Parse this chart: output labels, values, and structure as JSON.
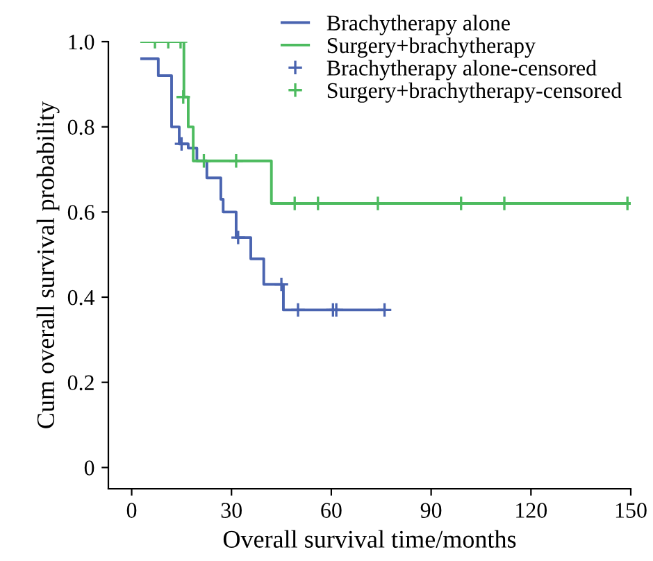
{
  "chart_data": {
    "type": "step",
    "xlabel": "Overall survival time/months",
    "ylabel": "Cum overall survival probability",
    "xlim": [
      -7,
      150
    ],
    "ylim": [
      -0.05,
      1.0
    ],
    "xticks": [
      0,
      30,
      60,
      90,
      120,
      150
    ],
    "yticks": [
      0,
      {
        "value": 0.2,
        "label": "0.2"
      },
      {
        "value": 0.4,
        "label": "0.4"
      },
      {
        "value": 0.6,
        "label": "0.6"
      },
      {
        "value": 0.8,
        "label": "0.8"
      },
      {
        "value": 1.0,
        "label": "1.0"
      }
    ],
    "legend": "top right",
    "grid": false,
    "series": [
      {
        "name": "Brachytherapy alone",
        "color": "#4a64b0",
        "x": [
          3,
          8,
          12,
          14.3,
          17,
          19.6,
          22.6,
          26.8,
          27.5,
          31.4,
          35.8,
          39.7,
          45.6,
          76
        ],
        "values": [
          0.96,
          0.92,
          0.8,
          0.76,
          0.75,
          0.72,
          0.68,
          0.63,
          0.6,
          0.54,
          0.49,
          0.43,
          0.37,
          0.37
        ]
      },
      {
        "name": "Surgery+brachytherapy",
        "color": "#4dbb5f",
        "x": [
          3,
          15.7,
          17,
          18.5,
          42,
          150
        ],
        "values": [
          1.0,
          0.87,
          0.8,
          0.72,
          0.62,
          0.62
        ]
      },
      {
        "name": "Brachytherapy alone-censored",
        "type": "scatter",
        "marker": "cross",
        "color": "#4a64b0",
        "x": [
          15,
          32,
          45,
          50,
          60.5,
          61.5,
          76
        ],
        "values": [
          0.76,
          0.54,
          0.43,
          0.37,
          0.37,
          0.37,
          0.37
        ]
      },
      {
        "name": "Surgery+brachytherapy-censored",
        "type": "scatter",
        "marker": "cross",
        "color": "#4dbb5f",
        "x": [
          7,
          11,
          14.7,
          15.5,
          21.7,
          31.4,
          49,
          56,
          74,
          99,
          112,
          149
        ],
        "values": [
          1.0,
          1.0,
          1.0,
          0.87,
          0.72,
          0.72,
          0.62,
          0.62,
          0.62,
          0.62,
          0.62,
          0.62
        ]
      }
    ]
  }
}
